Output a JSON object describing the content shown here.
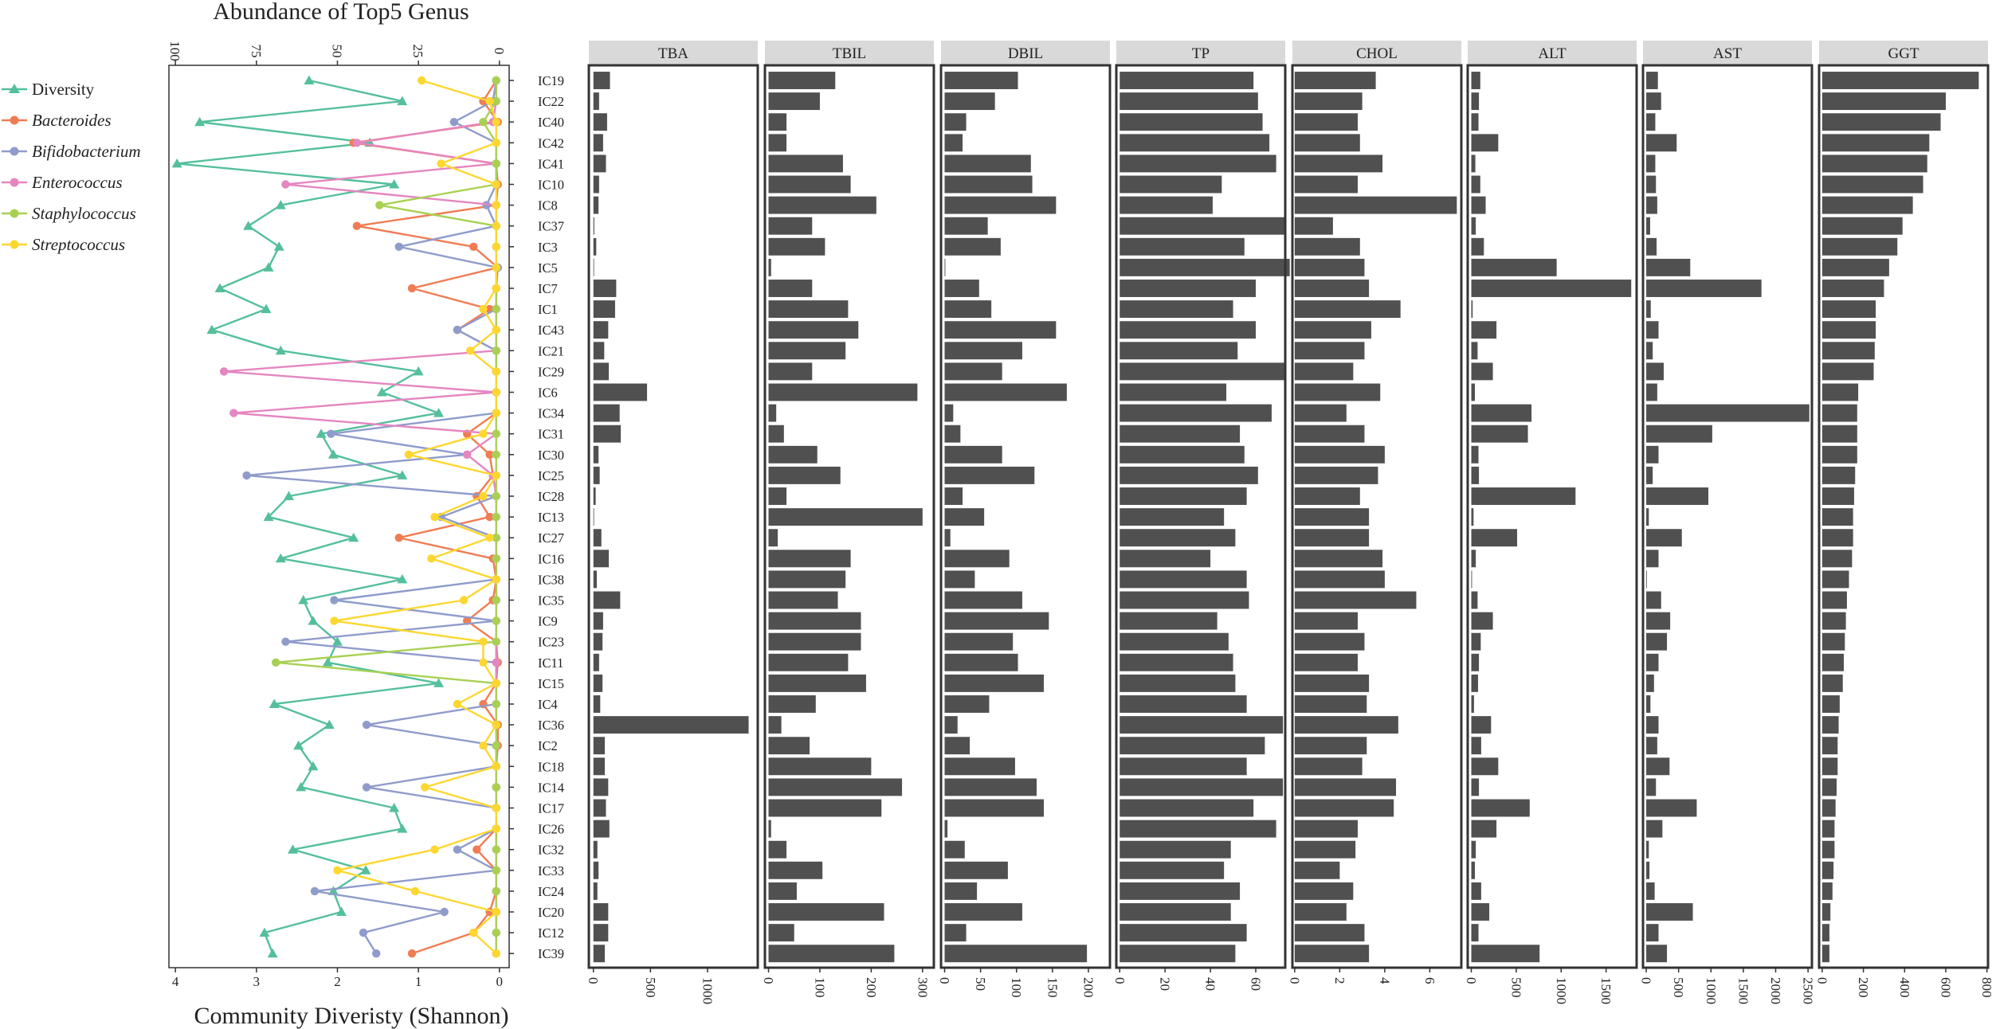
{
  "chart_data": [
    {
      "type": "line",
      "title": "Abundance of Top5 Genus",
      "xlabel": "Community Diveristy (Shannon)",
      "top_axis": {
        "ticks": [
          100,
          75,
          50,
          25,
          0
        ],
        "range": [
          102,
          -3
        ]
      },
      "bottom_axis": {
        "ticks": [
          4,
          3,
          2,
          1,
          0
        ],
        "range": [
          4.08,
          -0.12
        ]
      },
      "categories": [
        "IC19",
        "IC22",
        "IC40",
        "IC42",
        "IC41",
        "IC10",
        "IC8",
        "IC37",
        "IC3",
        "IC5",
        "IC7",
        "IC1",
        "IC43",
        "IC21",
        "IC29",
        "IC6",
        "IC34",
        "IC31",
        "IC30",
        "IC25",
        "IC28",
        "IC13",
        "IC27",
        "IC16",
        "IC38",
        "IC35",
        "IC9",
        "IC23",
        "IC11",
        "IC15",
        "IC4",
        "IC36",
        "IC2",
        "IC18",
        "IC14",
        "IC17",
        "IC26",
        "IC32",
        "IC33",
        "IC24",
        "IC20",
        "IC12",
        "IC39"
      ],
      "series": [
        {
          "name": "Diversity",
          "axis": "bottom",
          "color": "#55bf9d",
          "marker": "triangle",
          "values": [
            2.35,
            1.2,
            3.7,
            1.6,
            3.98,
            1.3,
            2.7,
            3.1,
            2.72,
            2.85,
            3.45,
            2.88,
            3.55,
            2.7,
            1.0,
            1.45,
            0.75,
            2.2,
            2.05,
            1.2,
            2.6,
            2.85,
            1.8,
            2.7,
            1.2,
            2.42,
            2.3,
            2.0,
            2.12,
            0.75,
            2.78,
            2.1,
            2.48,
            2.3,
            2.45,
            1.3,
            1.2,
            2.55,
            1.65,
            2.05,
            1.95,
            2.9,
            2.8
          ]
        },
        {
          "name": "Bacteroides",
          "axis": "top",
          "color": "#f07c54",
          "marker": "circle",
          "values": [
            1,
            5,
            0.5,
            45,
            1,
            0.5,
            1,
            44,
            8,
            0.5,
            27,
            3,
            13,
            1,
            1,
            1,
            1,
            10,
            3,
            2,
            7,
            3,
            31,
            2,
            1,
            2,
            10,
            1,
            0.5,
            1,
            5,
            0.5,
            0.5,
            1,
            1,
            1,
            1,
            7,
            1,
            1,
            3,
            8,
            27
          ]
        },
        {
          "name": "Bifidobacterium",
          "axis": "top",
          "color": "#8f9ccb",
          "marker": "circle",
          "values": [
            1,
            2,
            14,
            1,
            1,
            1,
            4,
            1,
            31,
            0.5,
            1,
            1,
            13,
            1,
            1,
            1,
            1,
            52,
            10,
            78,
            1,
            18,
            1,
            1,
            1,
            51,
            1,
            66,
            1,
            1,
            1,
            41,
            1,
            1,
            41,
            1,
            1,
            13,
            1,
            57,
            17,
            42,
            38
          ]
        },
        {
          "name": "Enterococcus",
          "axis": "top",
          "color": "#e586c0",
          "marker": "circle",
          "values": [
            1,
            1,
            2,
            44,
            1,
            66,
            1,
            1,
            1,
            1,
            1,
            1,
            1,
            1,
            85,
            1,
            82,
            1,
            10,
            2,
            1,
            1,
            1,
            1,
            1,
            1,
            1,
            1,
            1,
            1,
            1,
            1,
            1,
            1,
            1,
            1,
            1,
            1,
            1,
            1,
            1,
            1,
            1
          ]
        },
        {
          "name": "Staphylococcus",
          "axis": "top",
          "color": "#a8d152",
          "marker": "circle",
          "values": [
            1,
            1,
            5,
            1,
            1,
            1,
            37,
            1,
            1,
            1,
            1,
            1,
            1,
            1,
            1,
            1,
            1,
            1,
            1,
            1,
            1,
            1,
            1,
            1,
            1,
            1,
            1,
            1,
            69,
            1,
            1,
            1,
            1,
            1,
            1,
            1,
            1,
            1,
            1,
            1,
            1,
            1,
            1
          ]
        },
        {
          "name": "Streptococcus",
          "axis": "top",
          "color": "#fdd730",
          "marker": "circle",
          "values": [
            24,
            3,
            1,
            1,
            18,
            1,
            1,
            1,
            1,
            1,
            1,
            5,
            1,
            9,
            1,
            1,
            1,
            5,
            28,
            1,
            5,
            20,
            3,
            21,
            1,
            11,
            51,
            5,
            5,
            1,
            13,
            1,
            5,
            1,
            23,
            1,
            1,
            20,
            50,
            26,
            1,
            8,
            1
          ]
        }
      ],
      "legend_position": "left"
    },
    {
      "type": "bar",
      "title": "TBA",
      "ticks": [
        0,
        500,
        1000
      ],
      "xlim": [
        -40,
        1440
      ],
      "values": [
        145,
        50,
        120,
        85,
        110,
        50,
        45,
        8,
        25,
        2,
        200,
        190,
        130,
        95,
        135,
        470,
        230,
        240,
        45,
        55,
        20,
        2,
        70,
        135,
        30,
        235,
        85,
        80,
        50,
        80,
        60,
        1360,
        100,
        100,
        130,
        110,
        140,
        35,
        45,
        35,
        130,
        130,
        100
      ]
    },
    {
      "type": "bar",
      "title": "TBIL",
      "ticks": [
        0,
        100,
        200,
        300
      ],
      "xlim": [
        -7,
        322
      ],
      "values": [
        130,
        100,
        35,
        35,
        145,
        160,
        210,
        85,
        110,
        5,
        85,
        155,
        175,
        150,
        85,
        290,
        15,
        30,
        95,
        140,
        35,
        300,
        18,
        160,
        150,
        135,
        180,
        180,
        155,
        190,
        92,
        25,
        80,
        200,
        260,
        220,
        5,
        35,
        105,
        55,
        225,
        50,
        245
      ]
    },
    {
      "type": "bar",
      "title": "DBIL",
      "ticks": [
        0,
        50,
        100,
        150,
        200
      ],
      "xlim": [
        -5,
        230
      ],
      "values": [
        102,
        70,
        30,
        25,
        120,
        122,
        155,
        60,
        78,
        1,
        48,
        65,
        155,
        108,
        80,
        170,
        12,
        22,
        80,
        125,
        25,
        55,
        8,
        90,
        42,
        108,
        145,
        95,
        102,
        138,
        62,
        18,
        35,
        98,
        128,
        138,
        4,
        28,
        88,
        45,
        108,
        30,
        198
      ]
    },
    {
      "type": "bar",
      "title": "TP",
      "ticks": [
        0,
        20,
        40,
        60
      ],
      "xlim": [
        -1.5,
        73
      ],
      "values": [
        59,
        61,
        63,
        66,
        69,
        45,
        41,
        73,
        55,
        75,
        60,
        50,
        60,
        52,
        73,
        47,
        67,
        53,
        55,
        61,
        56,
        46,
        51,
        40,
        56,
        57,
        43,
        48,
        50,
        51,
        56,
        72,
        64,
        56,
        72,
        59,
        69,
        49,
        46,
        53,
        49,
        56,
        51
      ]
    },
    {
      "type": "bar",
      "title": "CHOL",
      "ticks": [
        0,
        2,
        4,
        6
      ],
      "xlim": [
        -0.1,
        7.4
      ],
      "values": [
        3.6,
        3.0,
        2.8,
        2.9,
        3.9,
        2.8,
        7.2,
        1.7,
        2.9,
        3.1,
        3.3,
        4.7,
        3.4,
        3.1,
        2.6,
        3.8,
        2.3,
        3.1,
        4.0,
        3.7,
        2.9,
        3.3,
        3.3,
        3.9,
        4.0,
        5.4,
        2.8,
        3.1,
        2.8,
        3.3,
        3.2,
        4.6,
        3.2,
        3.0,
        4.5,
        4.4,
        2.8,
        2.7,
        2.0,
        2.6,
        2.3,
        3.1,
        3.3
      ]
    },
    {
      "type": "bar",
      "title": "ALT",
      "ticks": [
        0,
        500,
        1000,
        1500
      ],
      "xlim": [
        -40,
        1840
      ],
      "values": [
        100,
        85,
        80,
        300,
        45,
        100,
        160,
        50,
        140,
        950,
        1780,
        15,
        280,
        70,
        240,
        40,
        670,
        630,
        80,
        85,
        1160,
        25,
        510,
        50,
        8,
        70,
        240,
        105,
        85,
        75,
        30,
        220,
        110,
        300,
        85,
        650,
        280,
        50,
        40,
        110,
        200,
        80,
        760
      ]
    },
    {
      "type": "bar",
      "title": "AST",
      "ticks": [
        0,
        500,
        1000,
        1500,
        2000,
        2500
      ],
      "xlim": [
        -50,
        2560
      ],
      "values": [
        180,
        230,
        140,
        470,
        140,
        150,
        170,
        60,
        160,
        680,
        1780,
        70,
        190,
        100,
        270,
        170,
        2520,
        1020,
        190,
        100,
        960,
        40,
        550,
        190,
        8,
        230,
        370,
        320,
        190,
        120,
        65,
        190,
        170,
        360,
        150,
        780,
        250,
        40,
        50,
        130,
        720,
        190,
        320
      ]
    },
    {
      "type": "bar",
      "title": "GGT",
      "ticks": [
        0,
        200,
        400,
        600,
        800
      ],
      "xlim": [
        -15,
        805
      ],
      "values": [
        760,
        600,
        575,
        520,
        510,
        490,
        440,
        390,
        365,
        325,
        300,
        260,
        260,
        255,
        250,
        175,
        170,
        170,
        170,
        160,
        155,
        150,
        150,
        145,
        130,
        120,
        115,
        110,
        105,
        100,
        85,
        80,
        75,
        75,
        70,
        65,
        60,
        60,
        55,
        50,
        40,
        35,
        35
      ]
    }
  ],
  "legend": {
    "items": [
      {
        "name": "Diversity",
        "color": "#55bf9d",
        "marker": "triangle",
        "italic": false
      },
      {
        "name": "Bacteroides",
        "color": "#f07c54",
        "marker": "circle",
        "italic": true
      },
      {
        "name": "Bifidobacterium",
        "color": "#8f9ccb",
        "marker": "circle",
        "italic": true
      },
      {
        "name": "Enterococcus",
        "color": "#e586c0",
        "marker": "circle",
        "italic": true
      },
      {
        "name": "Staphylococcus",
        "color": "#a8d152",
        "marker": "circle",
        "italic": true
      },
      {
        "name": "Streptococcus",
        "color": "#fdd730",
        "marker": "circle",
        "italic": true
      }
    ]
  },
  "colors": {
    "bar": "#505050",
    "strip": "#d9d9d9",
    "panel_border": "#333333"
  }
}
